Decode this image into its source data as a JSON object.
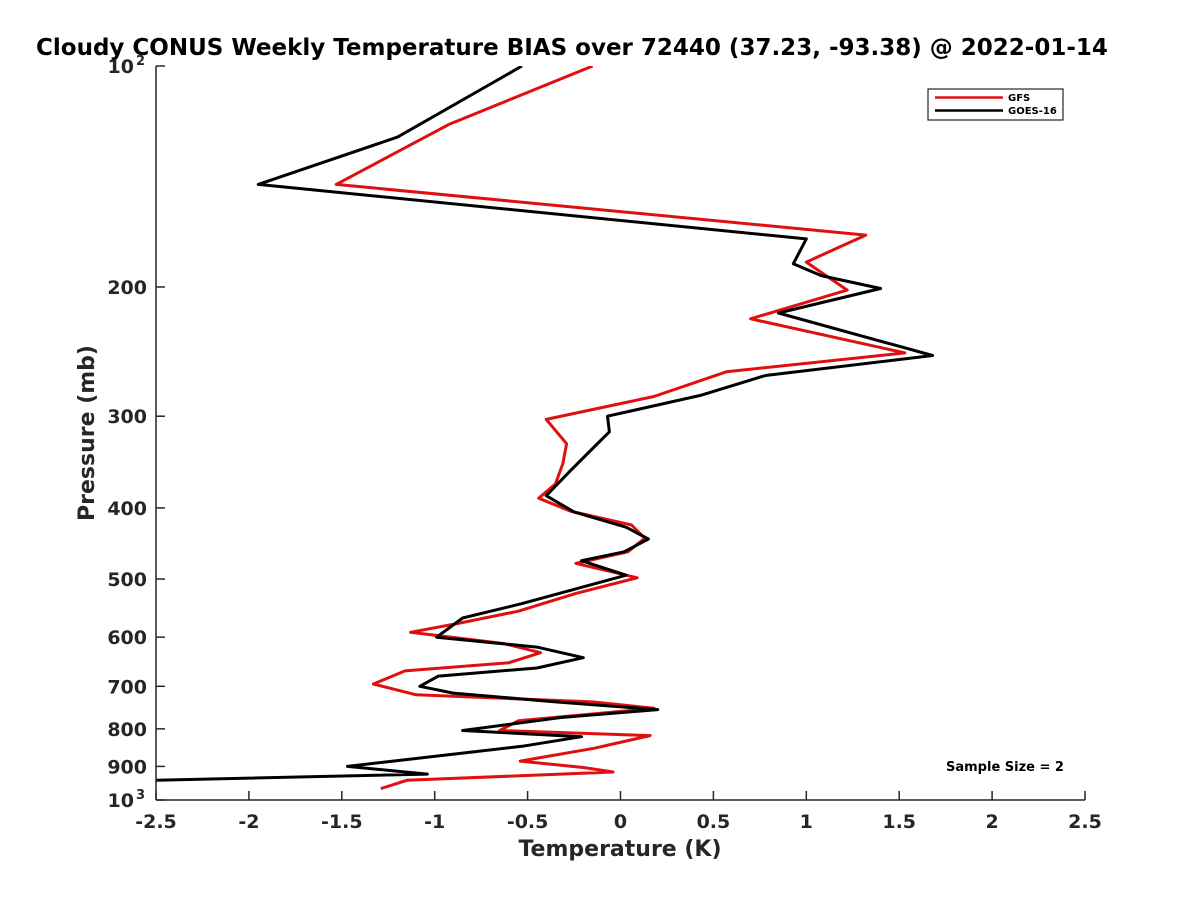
{
  "chart_data": {
    "type": "line",
    "title": "Cloudy CONUS Weekly Temperature BIAS over 72440 (37.23, -93.38) @ 2022-01-14",
    "xlabel": "Temperature (K)",
    "ylabel": "Pressure (mb)",
    "xlim": [
      -2.5,
      2.5
    ],
    "ylim": [
      100,
      1000
    ],
    "y_scale": "log",
    "y_reversed": true,
    "grid": false,
    "legend_position": "top-right",
    "annotation": "Sample Size = 2",
    "x_ticks": [
      "-2.5",
      "-2",
      "-1.5",
      "-1",
      "-0.5",
      "0",
      "0.5",
      "1",
      "1.5",
      "2",
      "2.5"
    ],
    "y_ticks": [
      {
        "value": 100,
        "base": "10",
        "exp": "2"
      },
      {
        "value": 200,
        "base": "200",
        "exp": ""
      },
      {
        "value": 300,
        "base": "300",
        "exp": ""
      },
      {
        "value": 400,
        "base": "400",
        "exp": ""
      },
      {
        "value": 500,
        "base": "500",
        "exp": ""
      },
      {
        "value": 600,
        "base": "600",
        "exp": ""
      },
      {
        "value": 700,
        "base": "700",
        "exp": ""
      },
      {
        "value": 800,
        "base": "800",
        "exp": ""
      },
      {
        "value": 900,
        "base": "900",
        "exp": ""
      },
      {
        "value": 1000,
        "base": "10",
        "exp": "3"
      }
    ],
    "series": [
      {
        "name": "GFS",
        "color": "#e01010",
        "points": [
          [
            -0.15,
            100
          ],
          [
            -0.92,
            120
          ],
          [
            -1.53,
            145
          ],
          [
            1.32,
            170
          ],
          [
            1.0,
            185
          ],
          [
            1.22,
            202
          ],
          [
            0.7,
            221
          ],
          [
            1.53,
            246
          ],
          [
            0.57,
            261
          ],
          [
            0.18,
            282
          ],
          [
            -0.4,
            303
          ],
          [
            -0.29,
            327
          ],
          [
            -0.31,
            348
          ],
          [
            -0.35,
            371
          ],
          [
            -0.44,
            388
          ],
          [
            -0.27,
            404
          ],
          [
            0.06,
            422
          ],
          [
            0.13,
            440
          ],
          [
            0.04,
            459
          ],
          [
            -0.24,
            476
          ],
          [
            0.09,
            498
          ],
          [
            -0.24,
            523
          ],
          [
            -0.55,
            553
          ],
          [
            -0.88,
            575
          ],
          [
            -1.13,
            591
          ],
          [
            -0.63,
            612
          ],
          [
            -0.43,
            630
          ],
          [
            -0.6,
            650
          ],
          [
            -1.16,
            667
          ],
          [
            -1.33,
            695
          ],
          [
            -1.1,
            719
          ],
          [
            -0.15,
            735
          ],
          [
            0.18,
            750
          ],
          [
            -0.55,
            780
          ],
          [
            -0.65,
            804
          ],
          [
            0.16,
            817
          ],
          [
            0.04,
            830
          ],
          [
            -0.14,
            850
          ],
          [
            -0.54,
            885
          ],
          [
            -0.2,
            903
          ],
          [
            -0.04,
            916
          ],
          [
            -1.15,
            940
          ],
          [
            -1.29,
            965
          ]
        ]
      },
      {
        "name": "GOES-16",
        "color": "#000000",
        "points": [
          [
            -0.53,
            100
          ],
          [
            -1.2,
            125
          ],
          [
            -1.95,
            145
          ],
          [
            1.0,
            172
          ],
          [
            0.93,
            186
          ],
          [
            1.08,
            193
          ],
          [
            1.4,
            201
          ],
          [
            0.85,
            217
          ],
          [
            1.68,
            248
          ],
          [
            0.78,
            264
          ],
          [
            0.43,
            281
          ],
          [
            -0.07,
            300
          ],
          [
            -0.06,
            315
          ],
          [
            -0.15,
            332
          ],
          [
            -0.27,
            356
          ],
          [
            -0.4,
            385
          ],
          [
            -0.25,
            405
          ],
          [
            0.03,
            425
          ],
          [
            0.15,
            441
          ],
          [
            0.02,
            459
          ],
          [
            -0.21,
            472
          ],
          [
            0.03,
            494
          ],
          [
            -0.53,
            540
          ],
          [
            -0.85,
            565
          ],
          [
            -0.99,
            600
          ],
          [
            -0.45,
            619
          ],
          [
            -0.2,
            640
          ],
          [
            -0.45,
            661
          ],
          [
            -0.98,
            678
          ],
          [
            -1.08,
            700
          ],
          [
            -0.9,
            715
          ],
          [
            -0.35,
            735
          ],
          [
            0.2,
            753
          ],
          [
            -0.32,
            772
          ],
          [
            -0.85,
            804
          ],
          [
            -0.21,
            820
          ],
          [
            -0.53,
            845
          ],
          [
            -1.47,
            900
          ],
          [
            -1.04,
            922
          ],
          [
            -2.5,
            940
          ]
        ]
      }
    ]
  }
}
